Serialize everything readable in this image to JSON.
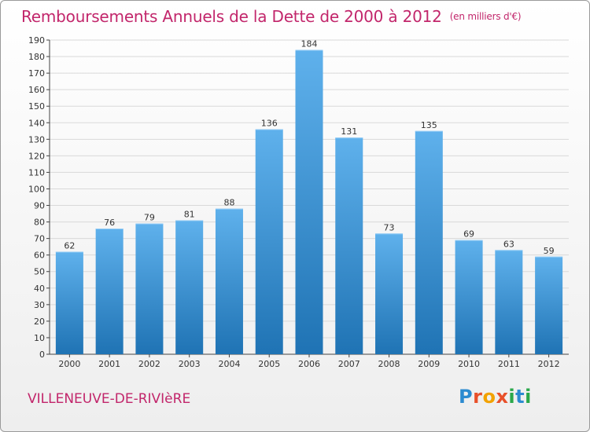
{
  "title": "Remboursements Annuels de la Dette de 2000 à 2012",
  "subtitle": "(en milliers d'€)",
  "place": "VILLENEUVE-DE-RIVIèRE",
  "logo": {
    "letters": [
      "P",
      "r",
      "o",
      "x",
      "i",
      "t",
      "i"
    ],
    "colors": [
      "#2c8bd0",
      "#e8502a",
      "#f2a200",
      "#e8502a",
      "#2aa84a",
      "#2c8bd0",
      "#2aa84a"
    ]
  },
  "colors": {
    "title": "#c2266b",
    "bar_top": "#5fb1ec",
    "bar_bottom": "#1f73b4",
    "grid": "#d9d9d9"
  },
  "chart_data": {
    "type": "bar",
    "categories": [
      "2000",
      "2001",
      "2002",
      "2003",
      "2004",
      "2005",
      "2006",
      "2007",
      "2008",
      "2009",
      "2010",
      "2011",
      "2012"
    ],
    "values": [
      62,
      76,
      79,
      81,
      88,
      136,
      184,
      131,
      73,
      135,
      69,
      63,
      59
    ],
    "ylim": [
      0,
      190
    ],
    "ytick_step": 10,
    "grid": true,
    "data_labels": true
  }
}
